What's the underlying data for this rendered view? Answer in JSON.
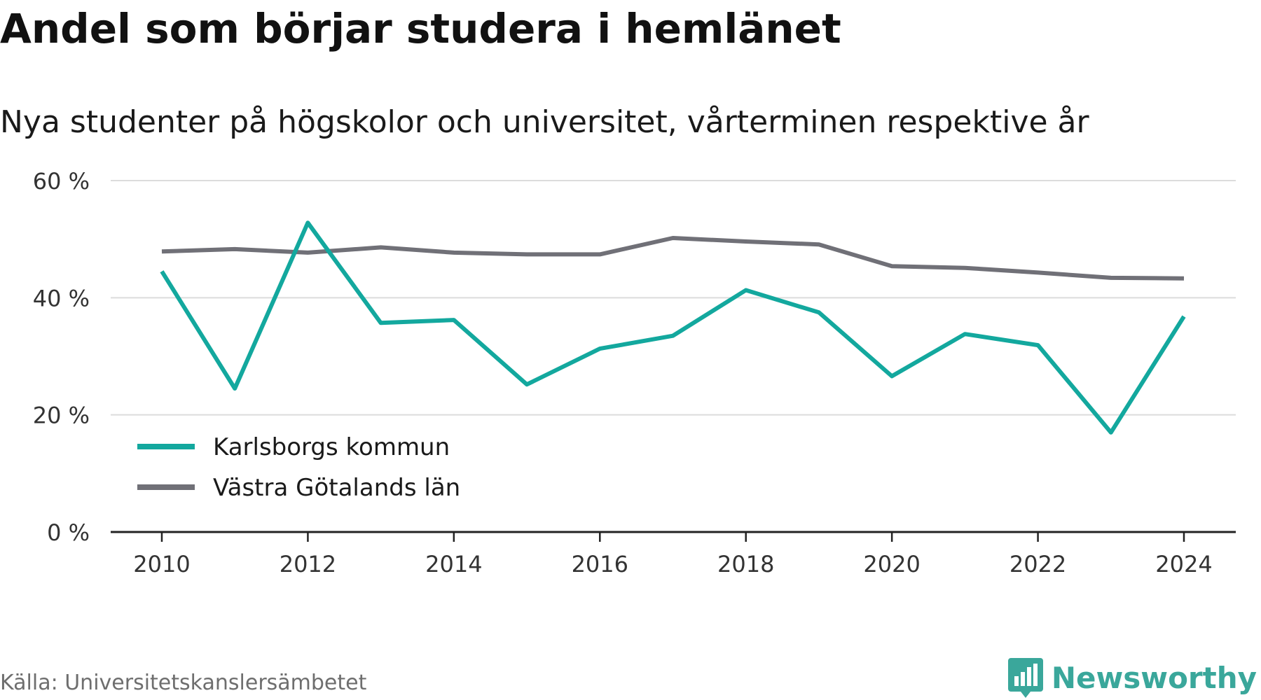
{
  "title": "Andel som börjar studera i hemlänet",
  "subtitle": "Nya studenter på högskolor och universitet, vårterminen respektive år",
  "source": "Källa: Universitetskanslersämbetet",
  "brand": {
    "name": "Newsworthy",
    "icon": "newsworthy-logo-icon",
    "color": "#3aa79b"
  },
  "chart_data": {
    "type": "line",
    "x": [
      2010,
      2011,
      2012,
      2013,
      2014,
      2015,
      2016,
      2017,
      2018,
      2019,
      2020,
      2021,
      2022,
      2023,
      2024
    ],
    "x_ticks": [
      2010,
      2012,
      2014,
      2016,
      2018,
      2020,
      2022,
      2024
    ],
    "y_ticks": [
      0,
      20,
      40,
      60
    ],
    "y_tick_labels": [
      "0 %",
      "20 %",
      "40 %",
      "60 %"
    ],
    "ylim": [
      0,
      60
    ],
    "grid": true,
    "legend_position": "bottom-left",
    "series": [
      {
        "name": "Karlsborgs kommun",
        "color": "#13a89e",
        "values": [
          44.5,
          24.5,
          52.8,
          35.7,
          36.2,
          25.2,
          31.3,
          33.5,
          41.3,
          37.5,
          26.6,
          33.8,
          31.9,
          17.0,
          36.8
        ]
      },
      {
        "name": "Västra Götalands län",
        "color": "#707077",
        "values": [
          47.9,
          48.3,
          47.7,
          48.6,
          47.7,
          47.4,
          47.4,
          50.2,
          49.6,
          49.1,
          45.4,
          45.1,
          44.3,
          43.4,
          43.3
        ]
      }
    ]
  }
}
